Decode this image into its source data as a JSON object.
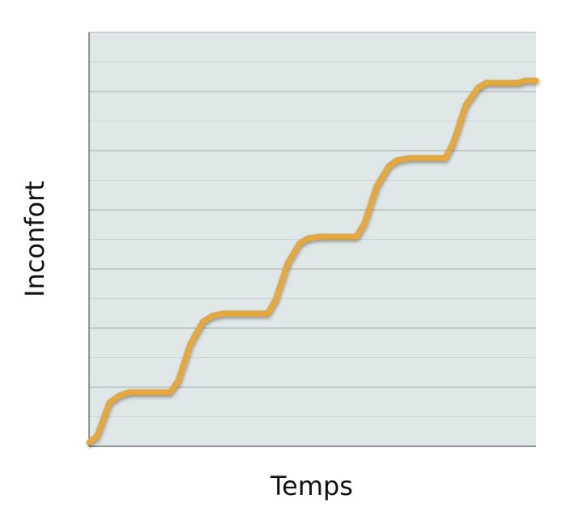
{
  "chart_data": {
    "type": "line",
    "x_label": "Temps",
    "y_label": "Inconfort",
    "x": [
      0,
      1.8,
      4.5,
      6.7,
      9.1,
      18.1,
      19.9,
      22.6,
      25.4,
      27.5,
      29.9,
      39.9,
      41.7,
      44.4,
      47.1,
      48.9,
      51.6,
      59.8,
      61.6,
      64.3,
      67.0,
      68.8,
      71.6,
      79.7,
      81.5,
      84.2,
      87.0,
      88.8,
      96.0,
      97.5,
      100
    ],
    "values": [
      0.07,
      0.18,
      0.74,
      0.86,
      0.92,
      0.92,
      1.11,
      1.73,
      2.11,
      2.21,
      2.25,
      2.25,
      2.48,
      3.1,
      3.44,
      3.52,
      3.55,
      3.55,
      3.78,
      4.4,
      4.74,
      4.84,
      4.88,
      4.88,
      5.15,
      5.77,
      6.07,
      6.15,
      6.15,
      6.19,
      6.19
    ],
    "color": "#e8a838",
    "xlim": [
      0,
      100
    ],
    "ylim": [
      0,
      7
    ],
    "yticks": [
      0,
      1,
      2,
      3,
      4,
      5,
      6,
      7
    ],
    "minor_yticks": [
      0.5,
      1.5,
      2.5,
      3.5,
      4.5,
      5.5,
      6.5
    ],
    "grid": true,
    "tick_labels": false
  }
}
